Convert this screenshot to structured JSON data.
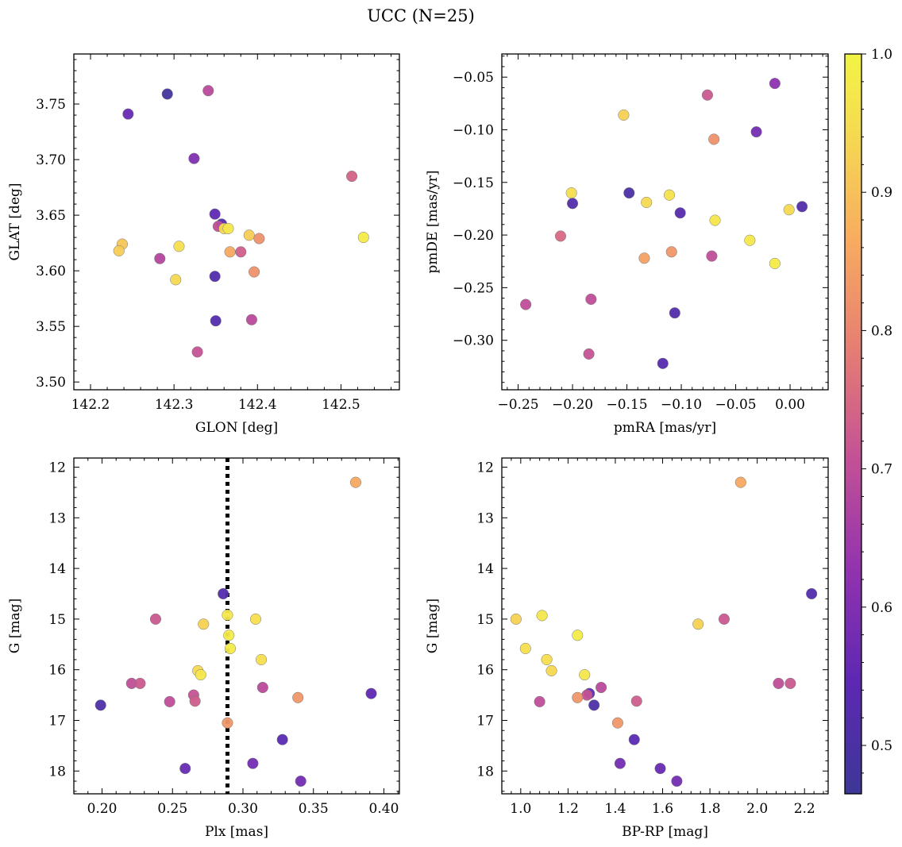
{
  "figure_title": "UCC (N=25)",
  "colorbar": {
    "range": [
      0.465,
      1.0
    ],
    "ticks": [
      "0.5",
      "0.6",
      "0.7",
      "0.8",
      "0.9",
      "1.0"
    ],
    "tick_values": [
      0.5,
      0.6,
      0.7,
      0.8,
      0.9,
      1.0
    ],
    "colormap": "plasma (truncated)"
  },
  "chart_data": [
    {
      "type": "scatter",
      "xlabel": "GLON [deg]",
      "ylabel": "GLAT [deg]",
      "xlim": [
        142.18,
        142.57
      ],
      "ylim": [
        3.493,
        3.795
      ],
      "xticks": [
        142.2,
        142.3,
        142.4,
        142.5
      ],
      "xtick_labels": [
        "142.2",
        "142.3",
        "142.4",
        "142.5"
      ],
      "yticks": [
        3.5,
        3.55,
        3.6,
        3.65,
        3.7,
        3.75
      ],
      "ytick_labels": [
        "3.50",
        "3.55",
        "3.60",
        "3.65",
        "3.70",
        "3.75"
      ],
      "invert_y": false,
      "points": [
        {
          "x": 142.292,
          "y": 3.759,
          "c": 0.48
        },
        {
          "x": 142.245,
          "y": 3.741,
          "c": 0.56
        },
        {
          "x": 142.341,
          "y": 3.762,
          "c": 0.69
        },
        {
          "x": 142.324,
          "y": 3.701,
          "c": 0.6
        },
        {
          "x": 142.513,
          "y": 3.685,
          "c": 0.74
        },
        {
          "x": 142.349,
          "y": 3.651,
          "c": 0.55
        },
        {
          "x": 142.357,
          "y": 3.642,
          "c": 0.53
        },
        {
          "x": 142.353,
          "y": 3.64,
          "c": 0.7
        },
        {
          "x": 142.36,
          "y": 3.638,
          "c": 0.94
        },
        {
          "x": 142.365,
          "y": 3.638,
          "c": 0.97
        },
        {
          "x": 142.39,
          "y": 3.632,
          "c": 0.92
        },
        {
          "x": 142.402,
          "y": 3.629,
          "c": 0.82
        },
        {
          "x": 142.527,
          "y": 3.63,
          "c": 0.98
        },
        {
          "x": 142.238,
          "y": 3.624,
          "c": 0.91
        },
        {
          "x": 142.306,
          "y": 3.622,
          "c": 0.95
        },
        {
          "x": 142.234,
          "y": 3.618,
          "c": 0.92
        },
        {
          "x": 142.367,
          "y": 3.617,
          "c": 0.86
        },
        {
          "x": 142.38,
          "y": 3.617,
          "c": 0.73
        },
        {
          "x": 142.283,
          "y": 3.611,
          "c": 0.68
        },
        {
          "x": 142.396,
          "y": 3.599,
          "c": 0.82
        },
        {
          "x": 142.349,
          "y": 3.595,
          "c": 0.52
        },
        {
          "x": 142.302,
          "y": 3.592,
          "c": 0.94
        },
        {
          "x": 142.35,
          "y": 3.555,
          "c": 0.52
        },
        {
          "x": 142.393,
          "y": 3.556,
          "c": 0.69
        },
        {
          "x": 142.328,
          "y": 3.527,
          "c": 0.71
        }
      ]
    },
    {
      "type": "scatter",
      "xlabel": "pmRA [mas/yr]",
      "ylabel": "pmDE [mas/yr]",
      "xlim": [
        -0.265,
        0.035
      ],
      "ylim": [
        -0.347,
        -0.028
      ],
      "xticks": [
        -0.25,
        -0.2,
        -0.15,
        -0.1,
        -0.05,
        0.0
      ],
      "xtick_labels": [
        "−0.25",
        "−0.20",
        "−0.15",
        "−0.10",
        "−0.05",
        "0.00"
      ],
      "yticks": [
        -0.3,
        -0.25,
        -0.2,
        -0.15,
        -0.1,
        -0.05
      ],
      "ytick_labels": [
        "−0.30",
        "−0.25",
        "−0.20",
        "−0.15",
        "−0.10",
        "−0.05"
      ],
      "invert_y": false,
      "points": [
        {
          "x": -0.014,
          "y": -0.056,
          "c": 0.62
        },
        {
          "x": -0.076,
          "y": -0.067,
          "c": 0.72
        },
        {
          "x": -0.153,
          "y": -0.086,
          "c": 0.93
        },
        {
          "x": -0.031,
          "y": -0.102,
          "c": 0.58
        },
        {
          "x": -0.07,
          "y": -0.109,
          "c": 0.82
        },
        {
          "x": -0.148,
          "y": -0.16,
          "c": 0.5
        },
        {
          "x": -0.201,
          "y": -0.16,
          "c": 0.95
        },
        {
          "x": -0.111,
          "y": -0.162,
          "c": 0.96
        },
        {
          "x": -0.132,
          "y": -0.169,
          "c": 0.94
        },
        {
          "x": -0.2,
          "y": -0.17,
          "c": 0.52
        },
        {
          "x": 0.011,
          "y": -0.173,
          "c": 0.52
        },
        {
          "x": -0.001,
          "y": -0.176,
          "c": 0.94
        },
        {
          "x": -0.101,
          "y": -0.179,
          "c": 0.53
        },
        {
          "x": -0.069,
          "y": -0.186,
          "c": 0.97
        },
        {
          "x": -0.211,
          "y": -0.201,
          "c": 0.75
        },
        {
          "x": -0.037,
          "y": -0.205,
          "c": 0.97
        },
        {
          "x": -0.109,
          "y": -0.216,
          "c": 0.83
        },
        {
          "x": -0.072,
          "y": -0.22,
          "c": 0.7
        },
        {
          "x": -0.134,
          "y": -0.222,
          "c": 0.85
        },
        {
          "x": -0.014,
          "y": -0.227,
          "c": 0.98
        },
        {
          "x": -0.183,
          "y": -0.261,
          "c": 0.7
        },
        {
          "x": -0.243,
          "y": -0.266,
          "c": 0.7
        },
        {
          "x": -0.106,
          "y": -0.274,
          "c": 0.52
        },
        {
          "x": -0.185,
          "y": -0.313,
          "c": 0.71
        },
        {
          "x": -0.117,
          "y": -0.322,
          "c": 0.53
        }
      ]
    },
    {
      "type": "scatter",
      "xlabel": "Plx [mas]",
      "ylabel": "G [mag]",
      "xlim": [
        0.18,
        0.411
      ],
      "ylim": [
        11.82,
        18.45
      ],
      "xticks": [
        0.2,
        0.25,
        0.3,
        0.35,
        0.4
      ],
      "xtick_labels": [
        "0.20",
        "0.25",
        "0.30",
        "0.35",
        "0.40"
      ],
      "yticks": [
        12,
        13,
        14,
        15,
        16,
        17,
        18
      ],
      "ytick_labels": [
        "12",
        "13",
        "14",
        "15",
        "16",
        "17",
        "18"
      ],
      "invert_y": true,
      "vline": 0.289,
      "points": [
        {
          "x": 0.38,
          "y": 12.3,
          "c": 0.86
        },
        {
          "x": 0.286,
          "y": 14.5,
          "c": 0.52
        },
        {
          "x": 0.238,
          "y": 15.0,
          "c": 0.72
        },
        {
          "x": 0.289,
          "y": 14.92,
          "c": 0.97
        },
        {
          "x": 0.309,
          "y": 15.0,
          "c": 0.95
        },
        {
          "x": 0.272,
          "y": 15.1,
          "c": 0.93
        },
        {
          "x": 0.29,
          "y": 15.32,
          "c": 0.98
        },
        {
          "x": 0.291,
          "y": 15.58,
          "c": 0.98
        },
        {
          "x": 0.313,
          "y": 15.8,
          "c": 0.95
        },
        {
          "x": 0.268,
          "y": 16.02,
          "c": 0.94
        },
        {
          "x": 0.27,
          "y": 16.1,
          "c": 0.97
        },
        {
          "x": 0.221,
          "y": 16.27,
          "c": 0.7
        },
        {
          "x": 0.227,
          "y": 16.27,
          "c": 0.72
        },
        {
          "x": 0.314,
          "y": 16.35,
          "c": 0.69
        },
        {
          "x": 0.265,
          "y": 16.5,
          "c": 0.71
        },
        {
          "x": 0.391,
          "y": 16.47,
          "c": 0.55
        },
        {
          "x": 0.248,
          "y": 16.63,
          "c": 0.7
        },
        {
          "x": 0.266,
          "y": 16.62,
          "c": 0.73
        },
        {
          "x": 0.339,
          "y": 16.55,
          "c": 0.83
        },
        {
          "x": 0.199,
          "y": 16.7,
          "c": 0.51
        },
        {
          "x": 0.289,
          "y": 17.05,
          "c": 0.83
        },
        {
          "x": 0.328,
          "y": 17.38,
          "c": 0.54
        },
        {
          "x": 0.307,
          "y": 17.85,
          "c": 0.58
        },
        {
          "x": 0.259,
          "y": 17.95,
          "c": 0.56
        },
        {
          "x": 0.341,
          "y": 18.2,
          "c": 0.58
        }
      ]
    },
    {
      "type": "scatter",
      "xlabel": "BP-RP [mag]",
      "ylabel": "G [mag]",
      "xlim": [
        0.92,
        2.3
      ],
      "ylim": [
        11.82,
        18.45
      ],
      "xticks": [
        1.0,
        1.2,
        1.4,
        1.6,
        1.8,
        2.0,
        2.2
      ],
      "xtick_labels": [
        "1.0",
        "1.2",
        "1.4",
        "1.6",
        "1.8",
        "2.0",
        "2.2"
      ],
      "yticks": [
        12,
        13,
        14,
        15,
        16,
        17,
        18
      ],
      "ytick_labels": [
        "12",
        "13",
        "14",
        "15",
        "16",
        "17",
        "18"
      ],
      "invert_y": true,
      "points": [
        {
          "x": 1.93,
          "y": 12.3,
          "c": 0.86
        },
        {
          "x": 2.23,
          "y": 14.5,
          "c": 0.52
        },
        {
          "x": 0.98,
          "y": 15.0,
          "c": 0.93
        },
        {
          "x": 1.09,
          "y": 14.93,
          "c": 0.97
        },
        {
          "x": 1.86,
          "y": 15.0,
          "c": 0.72
        },
        {
          "x": 1.75,
          "y": 15.1,
          "c": 0.93
        },
        {
          "x": 1.24,
          "y": 15.32,
          "c": 0.98
        },
        {
          "x": 1.02,
          "y": 15.58,
          "c": 0.95
        },
        {
          "x": 1.11,
          "y": 15.8,
          "c": 0.95
        },
        {
          "x": 1.13,
          "y": 16.02,
          "c": 0.94
        },
        {
          "x": 1.27,
          "y": 16.1,
          "c": 0.97
        },
        {
          "x": 2.09,
          "y": 16.27,
          "c": 0.7
        },
        {
          "x": 2.14,
          "y": 16.27,
          "c": 0.72
        },
        {
          "x": 1.34,
          "y": 16.35,
          "c": 0.69
        },
        {
          "x": 1.29,
          "y": 16.47,
          "c": 0.55
        },
        {
          "x": 1.28,
          "y": 16.5,
          "c": 0.71
        },
        {
          "x": 1.24,
          "y": 16.55,
          "c": 0.83
        },
        {
          "x": 1.08,
          "y": 16.63,
          "c": 0.7
        },
        {
          "x": 1.49,
          "y": 16.62,
          "c": 0.73
        },
        {
          "x": 1.31,
          "y": 16.7,
          "c": 0.51
        },
        {
          "x": 1.41,
          "y": 17.05,
          "c": 0.83
        },
        {
          "x": 1.48,
          "y": 17.38,
          "c": 0.54
        },
        {
          "x": 1.42,
          "y": 17.85,
          "c": 0.58
        },
        {
          "x": 1.59,
          "y": 17.95,
          "c": 0.56
        },
        {
          "x": 1.66,
          "y": 18.2,
          "c": 0.58
        }
      ]
    }
  ]
}
